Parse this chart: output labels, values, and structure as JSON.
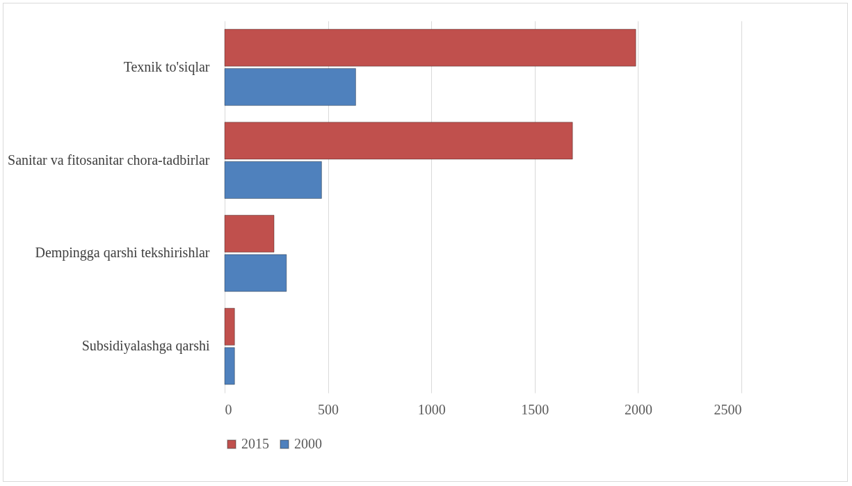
{
  "chart_data": {
    "type": "bar",
    "orientation": "horizontal",
    "categories": [
      "Texnik to'siqlar",
      "Sanitar va fitosanitar chora-tadbirlar",
      "Dempingga qarshi tekshirishlar",
      "Subsidiyalashga qarshi"
    ],
    "series": [
      {
        "name": "2015",
        "color": "#c0504d",
        "values": [
          1989,
          1683,
          239,
          48
        ]
      },
      {
        "name": "2000",
        "color": "#4f81bd",
        "values": [
          634,
          469,
          299,
          48
        ]
      }
    ],
    "xlim": [
      0,
      2500
    ],
    "xticks": [
      0,
      500,
      1000,
      1500,
      2000,
      2500
    ],
    "grid": "x",
    "legend": "bottom"
  }
}
